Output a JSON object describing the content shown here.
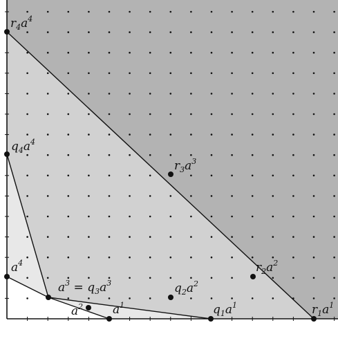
{
  "labels": {
    "r4": {
      "base": "r",
      "sub": "4",
      "a": "a",
      "sup": "4"
    },
    "q4": {
      "base": "q",
      "sub": "4",
      "a": "a",
      "sup": "4"
    },
    "r3": {
      "base": "r",
      "sub": "3",
      "a": "a",
      "sup": "3"
    },
    "a4": {
      "a": "a",
      "sup": "4"
    },
    "a3q3": {
      "a": "a",
      "sup": "3",
      "eq": " = ",
      "base": "q",
      "sub": "3",
      "a2": "a",
      "sup2": "3"
    },
    "q2": {
      "base": "q",
      "sub": "2",
      "a": "a",
      "sup": "2"
    },
    "r2": {
      "base": "r",
      "sub": "2",
      "a": "a",
      "sup": "2"
    },
    "a2": {
      "a": "a",
      "sup": "2"
    },
    "a1": {
      "a": "a",
      "sup": "1"
    },
    "q1": {
      "base": "q",
      "sub": "1",
      "a": "a",
      "sup": "1"
    },
    "r1": {
      "base": "r",
      "sub": "1",
      "a": "a",
      "sup": "1"
    }
  },
  "colors": {
    "region_outer": "#b3b3b3",
    "region_r": "#d1d1d1",
    "region_q": "#e8e8e8",
    "region_inner": "#ffffff",
    "line": "#111111",
    "dot": "#111111"
  }
}
